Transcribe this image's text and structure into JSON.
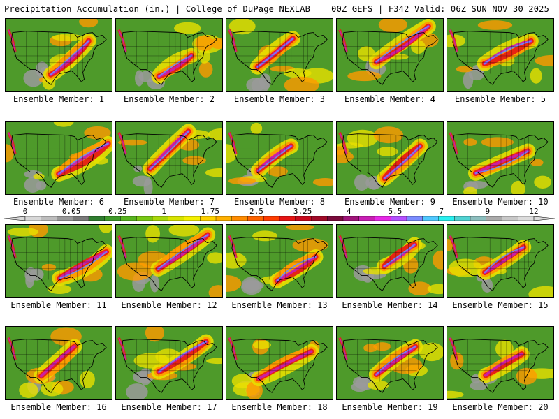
{
  "header": {
    "left": "Precipitation Accumulation (in.) | College of DuPage NEXLAB",
    "right": "00Z GEFS | F342 Valid: 06Z SUN NOV 30 2025"
  },
  "panels": [
    {
      "label": "Ensemble Member: 1",
      "seed": 11
    },
    {
      "label": "Ensemble Member: 2",
      "seed": 23
    },
    {
      "label": "Ensemble Member: 3",
      "seed": 37
    },
    {
      "label": "Ensemble Member: 4",
      "seed": 41
    },
    {
      "label": "Ensemble Member: 5",
      "seed": 53
    },
    {
      "label": "Ensemble Member: 6",
      "seed": 67
    },
    {
      "label": "Ensemble Member: 7",
      "seed": 71
    },
    {
      "label": "Ensemble Member: 8",
      "seed": 83
    },
    {
      "label": "Ensemble Member: 9",
      "seed": 97
    },
    {
      "label": "Ensemble Member: 10",
      "seed": 101
    },
    {
      "label": "Ensemble Member: 11",
      "seed": 113
    },
    {
      "label": "Ensemble Member: 12",
      "seed": 127
    },
    {
      "label": "Ensemble Member: 13",
      "seed": 131
    },
    {
      "label": "Ensemble Member: 14",
      "seed": 149
    },
    {
      "label": "Ensemble Member: 15",
      "seed": 151
    },
    {
      "label": "Ensemble Member: 16",
      "seed": 163
    },
    {
      "label": "Ensemble Member: 17",
      "seed": 173
    },
    {
      "label": "Ensemble Member: 18",
      "seed": 181
    },
    {
      "label": "Ensemble Member: 19",
      "seed": 191
    },
    {
      "label": "Ensemble Member: 20",
      "seed": 197
    }
  ],
  "colorbar": {
    "tick_labels": [
      "0",
      "0.05",
      "0.25",
      "1",
      "1.75",
      "2.5",
      "3.25",
      "4",
      "5.5",
      "7",
      "9",
      "12"
    ],
    "colors": [
      "#d8d8d8",
      "#bdbdbd",
      "#9a9a9a",
      "#7a7a7a",
      "#2f7d2f",
      "#3f9a2a",
      "#58b41f",
      "#78c814",
      "#a8d80a",
      "#d8e400",
      "#f4f000",
      "#ffd200",
      "#ffb000",
      "#ff8c00",
      "#ff6400",
      "#ff3c00",
      "#e61414",
      "#c80a1e",
      "#a00a28",
      "#7a0a3c",
      "#a0147a",
      "#c81eb4",
      "#e628e6",
      "#b450ff",
      "#7a8cff",
      "#50c8ff",
      "#28f0f0",
      "#50d2d2",
      "#8cbebe",
      "#aaaaaa",
      "#c8c8c8",
      "#dcdcdc"
    ]
  },
  "map_colors": {
    "base_green": "#4e9a2a",
    "gray": "#9a9a9a",
    "yellow": "#e8e000",
    "orange": "#ff9a00",
    "red": "#e61e14",
    "magenta": "#c81eb4",
    "blue": "#6a8cff"
  }
}
